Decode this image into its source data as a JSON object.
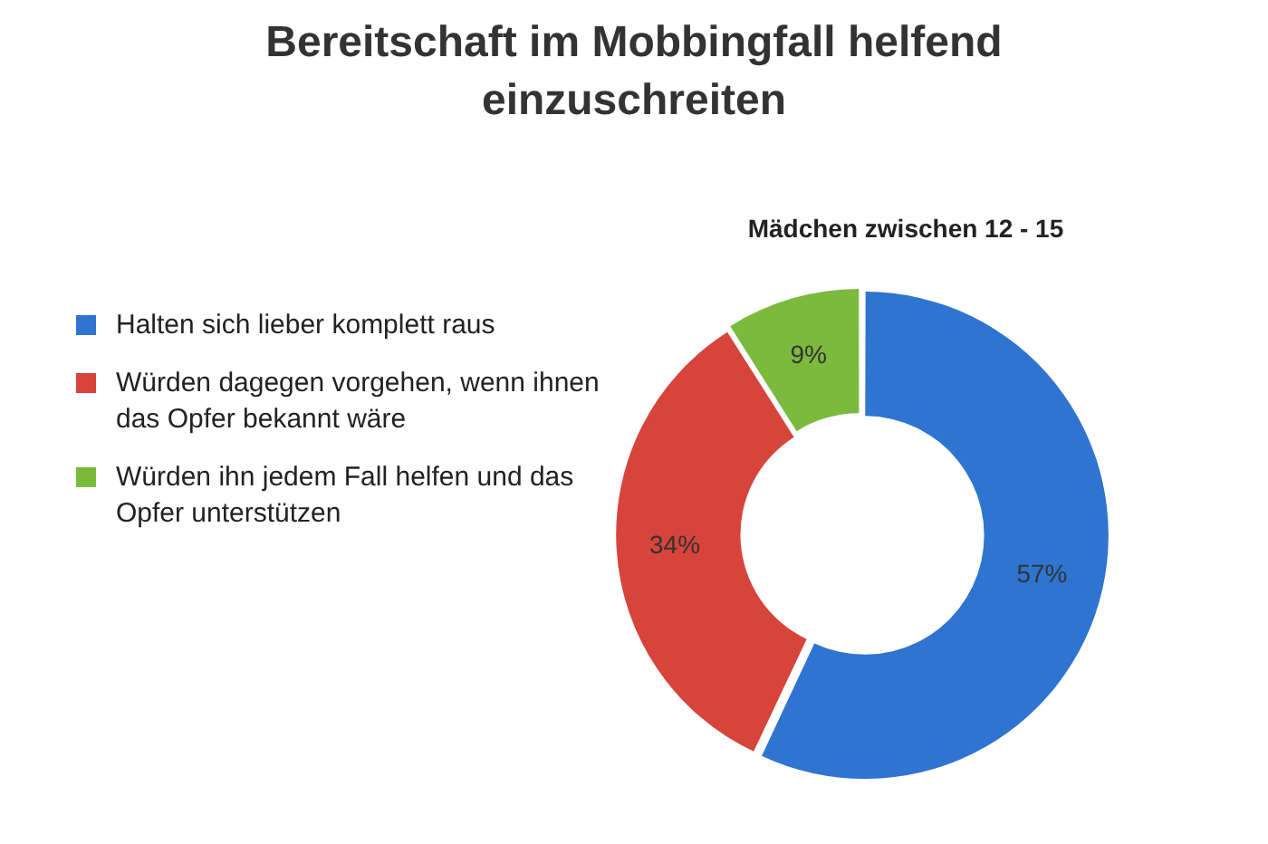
{
  "chart_data": {
    "type": "donut",
    "title": "Bereitschaft im Mobbingfall helfend einzuschreiten",
    "subtitle": "Mädchen zwischen 12 - 15",
    "categories": [
      "Halten sich lieber komplett raus",
      "Würden dagegen vorgehen, wenn ihnen das Opfer bekannt wäre",
      "Würden ihn jedem Fall helfen und das Opfer unterstützen"
    ],
    "values": [
      57,
      34,
      9
    ],
    "colors": [
      "#2f74d0",
      "#d7443c",
      "#7cba3e"
    ],
    "value_labels": [
      "57%",
      "34%",
      "9%"
    ],
    "legend": "left"
  }
}
